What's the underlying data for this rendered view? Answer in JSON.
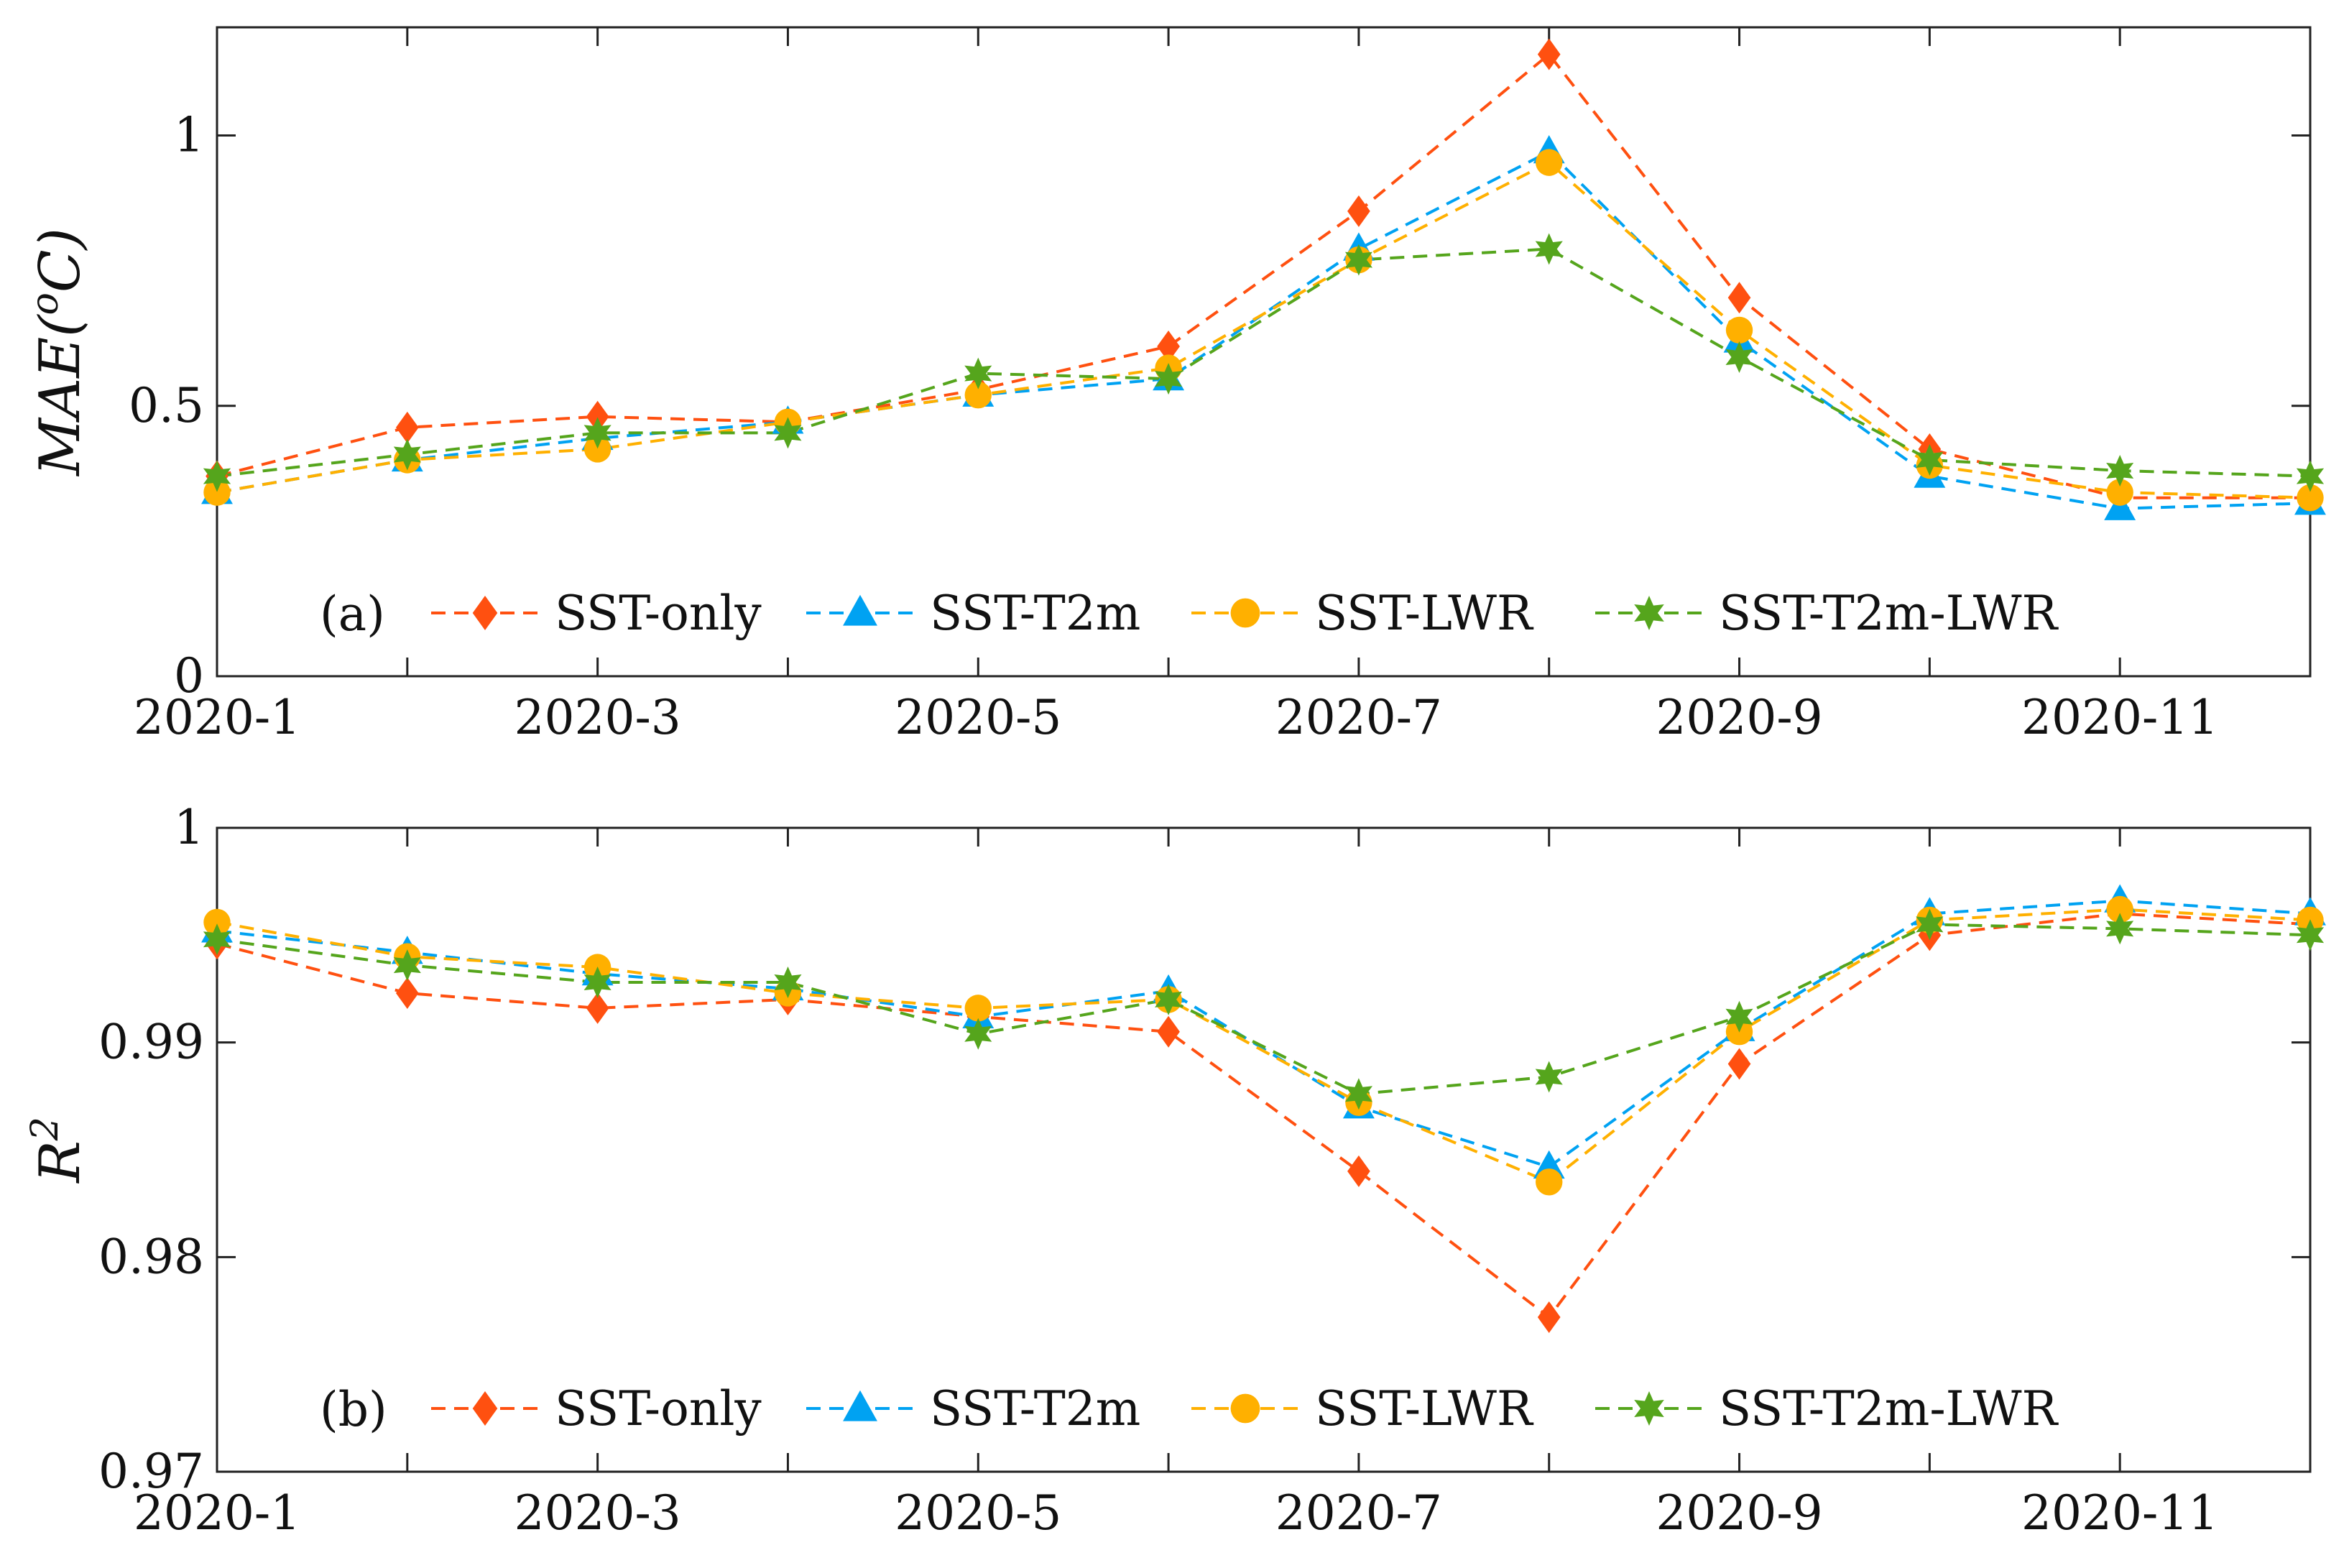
{
  "chart_data": [
    {
      "type": "line",
      "panel_label": "(a)",
      "ylabel_main": "MAE(",
      "ylabel_sup": "o",
      "ylabel_tail": "C)",
      "categories": [
        "2020-1",
        "2020-2",
        "2020-3",
        "2020-4",
        "2020-5",
        "2020-6",
        "2020-7",
        "2020-8",
        "2020-9",
        "2020-10",
        "2020-11",
        "2020-12"
      ],
      "x_tick_labels": [
        "2020-1",
        "2020-3",
        "2020-5",
        "2020-7",
        "2020-9",
        "2020-11"
      ],
      "ylim": [
        0,
        1.2
      ],
      "y_ticks": [
        0,
        0.5,
        1
      ],
      "y_tick_labels": [
        "0",
        "0.5",
        "1"
      ],
      "legend_position": "bottom-center",
      "series": [
        {
          "name": "SST-only",
          "color": "#ff5010",
          "marker": "diamond",
          "values": [
            0.37,
            0.46,
            0.48,
            0.47,
            0.53,
            0.61,
            0.86,
            1.15,
            0.7,
            0.42,
            0.33,
            0.33
          ]
        },
        {
          "name": "SST-T2m",
          "color": "#00a2f2",
          "marker": "triangle",
          "values": [
            0.34,
            0.4,
            0.44,
            0.47,
            0.52,
            0.55,
            0.79,
            0.97,
            0.62,
            0.37,
            0.31,
            0.32
          ]
        },
        {
          "name": "SST-LWR",
          "color": "#ffb000",
          "marker": "circle",
          "values": [
            0.34,
            0.4,
            0.42,
            0.47,
            0.52,
            0.57,
            0.77,
            0.95,
            0.64,
            0.39,
            0.34,
            0.33
          ]
        },
        {
          "name": "SST-T2m-LWR",
          "color": "#55a51c",
          "marker": "star",
          "values": [
            0.37,
            0.41,
            0.45,
            0.45,
            0.56,
            0.55,
            0.77,
            0.79,
            0.59,
            0.4,
            0.38,
            0.37
          ]
        }
      ]
    },
    {
      "type": "line",
      "panel_label": "(b)",
      "ylabel_main": "R",
      "ylabel_sup": "2",
      "ylabel_tail": "",
      "categories": [
        "2020-1",
        "2020-2",
        "2020-3",
        "2020-4",
        "2020-5",
        "2020-6",
        "2020-7",
        "2020-8",
        "2020-9",
        "2020-10",
        "2020-11",
        "2020-12"
      ],
      "x_tick_labels": [
        "2020-1",
        "2020-3",
        "2020-5",
        "2020-7",
        "2020-9",
        "2020-11"
      ],
      "ylim": [
        0.97,
        1.0
      ],
      "y_ticks": [
        0.97,
        0.98,
        0.99,
        1.0
      ],
      "y_tick_labels": [
        "0.97",
        "0.98",
        "0.99",
        "1"
      ],
      "legend_position": "bottom-center",
      "series": [
        {
          "name": "SST-only",
          "color": "#ff5010",
          "marker": "diamond",
          "values": [
            0.9946,
            0.9923,
            0.9916,
            0.992,
            0.9912,
            0.9905,
            0.984,
            0.9772,
            0.989,
            0.995,
            0.996,
            0.9955
          ]
        },
        {
          "name": "SST-T2m",
          "color": "#00a2f2",
          "marker": "triangle",
          "values": [
            0.9952,
            0.9942,
            0.9932,
            0.9925,
            0.9912,
            0.9924,
            0.987,
            0.9842,
            0.9906,
            0.996,
            0.9966,
            0.996
          ]
        },
        {
          "name": "SST-LWR",
          "color": "#ffb000",
          "marker": "circle",
          "values": [
            0.9956,
            0.994,
            0.9935,
            0.9923,
            0.9916,
            0.992,
            0.9872,
            0.9835,
            0.9905,
            0.9957,
            0.9962,
            0.9957
          ]
        },
        {
          "name": "SST-T2m-LWR",
          "color": "#55a51c",
          "marker": "star",
          "values": [
            0.9948,
            0.9936,
            0.9928,
            0.9928,
            0.9904,
            0.992,
            0.9876,
            0.9884,
            0.9912,
            0.9955,
            0.9953,
            0.995
          ]
        }
      ]
    }
  ]
}
